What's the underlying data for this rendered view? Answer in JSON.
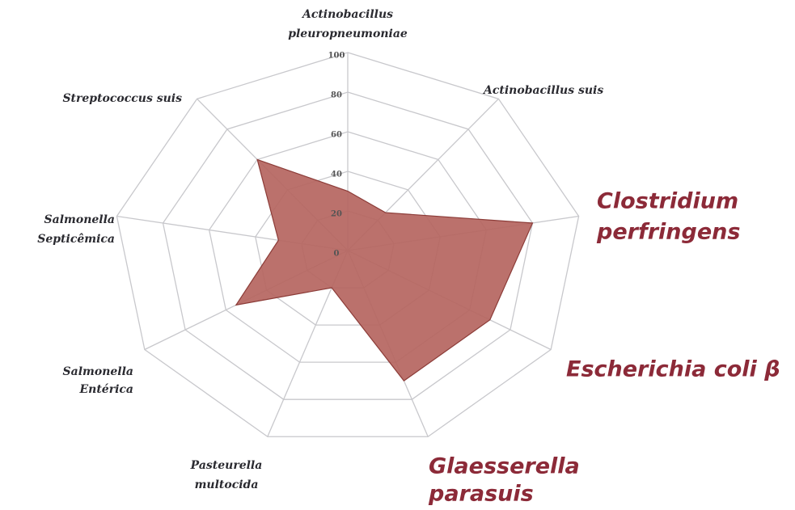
{
  "chart_data": {
    "type": "radar",
    "categories": [
      [
        "Actinobacillus",
        "pleuropneumoniae"
      ],
      [
        "Actinobacillus suis"
      ],
      [
        "Clostridium",
        "perfringens"
      ],
      [
        "Escherichia coli β"
      ],
      [
        "Glaesserella",
        "parasuis"
      ],
      [
        "Pasteurella",
        "multocida"
      ],
      [
        "Salmonella",
        "Entérica"
      ],
      [
        "Salmonella",
        "Septicêmica"
      ],
      [
        "Streptococcus suis"
      ]
    ],
    "values": [
      30,
      25,
      80,
      70,
      70,
      20,
      55,
      30,
      60
    ],
    "color": "#b5655f",
    "ylim": [
      0,
      100
    ],
    "yticks": [
      0,
      20,
      40,
      60,
      80,
      100
    ],
    "grid": true
  }
}
